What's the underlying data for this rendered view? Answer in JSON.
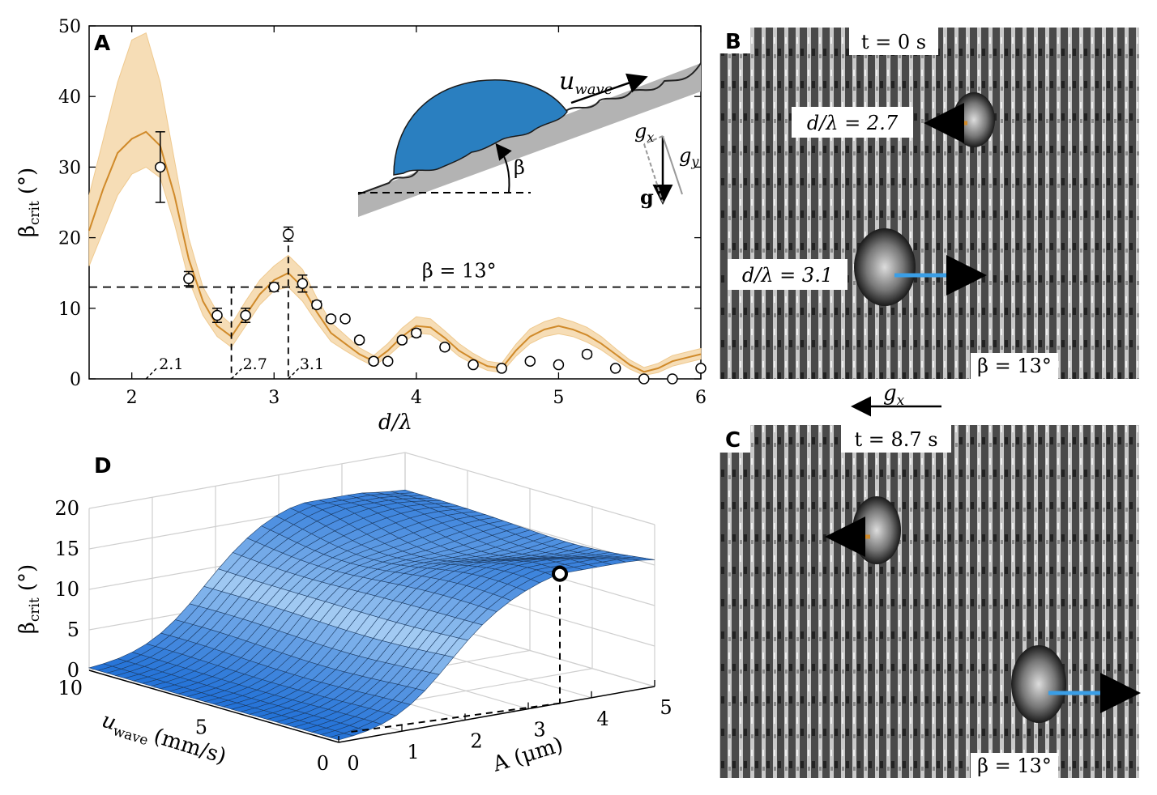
{
  "panel_labels": {
    "a": "A",
    "b": "B",
    "c": "C",
    "d": "D"
  },
  "chart_data": [
    {
      "panel": "A",
      "type": "line",
      "xlabel": "d/λ",
      "ylabel_main": "β",
      "ylabel_sub": "crit",
      "ylabel_unit": "(°)",
      "xlim": [
        1.7,
        6
      ],
      "ylim": [
        0,
        50
      ],
      "xticks": [
        2,
        3,
        4,
        5,
        6
      ],
      "yticks": [
        0,
        10,
        20,
        30,
        40,
        50
      ],
      "hline": {
        "y": 13,
        "label": "β = 13°"
      },
      "vlines": [
        {
          "x": 2.7,
          "label": "2.7"
        },
        {
          "x": 3.1,
          "label": "3.1"
        }
      ],
      "diag_marker": {
        "x": 2.1,
        "label": "2.1"
      },
      "line_color": "#d08a2a",
      "band_color": "#f6ddb6",
      "model_curve": {
        "x": [
          1.7,
          1.8,
          1.9,
          2.0,
          2.1,
          2.2,
          2.3,
          2.4,
          2.5,
          2.6,
          2.7,
          2.8,
          2.9,
          3.0,
          3.1,
          3.2,
          3.3,
          3.4,
          3.5,
          3.6,
          3.7,
          3.8,
          3.9,
          4.0,
          4.1,
          4.2,
          4.3,
          4.4,
          4.5,
          4.6,
          4.7,
          4.8,
          4.9,
          5.0,
          5.1,
          5.2,
          5.3,
          5.4,
          5.5,
          5.6,
          5.7,
          5.8,
          5.9,
          6.0
        ],
        "y": [
          21,
          27,
          32,
          34,
          35,
          33,
          26,
          17,
          11,
          7.5,
          6,
          9,
          12,
          14,
          15,
          13,
          9.5,
          6.5,
          5,
          3.5,
          2.5,
          4,
          6,
          7.5,
          7.3,
          5.8,
          4,
          2.8,
          1.8,
          1.5,
          4,
          6,
          7,
          7.5,
          7,
          6.2,
          5,
          3.5,
          2,
          1,
          1.5,
          2.5,
          3,
          3.5
        ],
        "lower": [
          16,
          21,
          26,
          29,
          30,
          28.5,
          22,
          14,
          9,
          6,
          4.5,
          7.5,
          10.5,
          12.5,
          13,
          11,
          8,
          5.3,
          4,
          2.8,
          1.8,
          3.2,
          5,
          6.5,
          6.3,
          4.9,
          3.2,
          2.1,
          1.2,
          0.9,
          3.2,
          5,
          6,
          6.4,
          6,
          5.2,
          4.1,
          2.7,
          1.4,
          0.5,
          0.9,
          1.8,
          2.3,
          2.8
        ],
        "upper": [
          26,
          34,
          42,
          48,
          49,
          42,
          31,
          20,
          13,
          9.5,
          7.7,
          11,
          14,
          16,
          17.5,
          15.5,
          11.5,
          8,
          6.2,
          4.4,
          3.3,
          5,
          7.2,
          8.8,
          8.5,
          6.8,
          5,
          3.6,
          2.5,
          2.2,
          4.9,
          7.1,
          8.1,
          8.7,
          8.1,
          7.3,
          6,
          4.3,
          2.7,
          1.6,
          2.2,
          3.3,
          3.8,
          4.3
        ]
      },
      "measured": {
        "x": [
          2.2,
          2.4,
          2.6,
          2.8,
          3.0,
          3.1,
          3.2,
          3.3,
          3.4,
          3.5,
          3.6,
          3.7,
          3.8,
          3.9,
          4.0,
          4.2,
          4.4,
          4.6,
          4.8,
          5.0,
          5.2,
          5.4,
          5.6,
          5.8,
          6.0
        ],
        "y": [
          30,
          14.2,
          9,
          9,
          13,
          20.5,
          13.5,
          10.5,
          8.5,
          8.5,
          5.5,
          2.5,
          2.5,
          5.5,
          6.5,
          4.5,
          2,
          1.5,
          2.5,
          2,
          3.5,
          1.5,
          0,
          0,
          1.5
        ],
        "err": [
          5,
          1,
          1,
          1,
          0.6,
          1,
          1.2,
          0.5,
          0.4,
          0.4,
          0.4,
          0.4,
          0.3,
          0.4,
          0.5,
          0.4,
          0.3,
          0.3,
          0.3,
          0.3,
          0.4,
          0.3,
          0.2,
          0.2,
          0.3
        ]
      },
      "inset": {
        "wave_label_main": "u",
        "wave_label_sub": "wave",
        "beta_label": "β",
        "gx_label": "g",
        "gx_sub": "x",
        "gy_label": "g",
        "gy_sub": "y",
        "g_label": "g",
        "drop_color": "#2a7fc0",
        "substrate_color": "#b3b3b3"
      }
    },
    {
      "panel": "D",
      "type": "surface",
      "zlabel_main": "β",
      "zlabel_sub": "crit",
      "zlabel_unit": "(°)",
      "xlabel": "A (μm)",
      "ylabel_main": "u",
      "ylabel_sub": "wave",
      "ylabel_unit": "(mm/s)",
      "xlim": [
        0,
        5
      ],
      "ylim": [
        0,
        10
      ],
      "zlim": [
        0,
        20
      ],
      "xticks": [
        0,
        1,
        2,
        3,
        4,
        5
      ],
      "yticks": [
        0,
        5,
        10
      ],
      "zticks": [
        0,
        5,
        10,
        15,
        20
      ],
      "marker": {
        "A": 3.5,
        "u_wave": 0,
        "beta_crit": 13
      },
      "surface_color_low": "#1f6fd6",
      "surface_color_high": "#a9cff4"
    }
  ],
  "photos": {
    "b": {
      "time_label": "t = 0 s",
      "drop1_label": "d/λ = 2.7",
      "drop2_label": "d/λ = 3.1",
      "beta_label": "β = 13°"
    },
    "c": {
      "time_label": "t = 8.7 s",
      "beta_label": "β = 13°"
    },
    "gx_arrow_label": "g",
    "gx_arrow_sub": "x",
    "arrow_orange": "#d08a2a",
    "arrow_blue": "#3a9ee6"
  }
}
